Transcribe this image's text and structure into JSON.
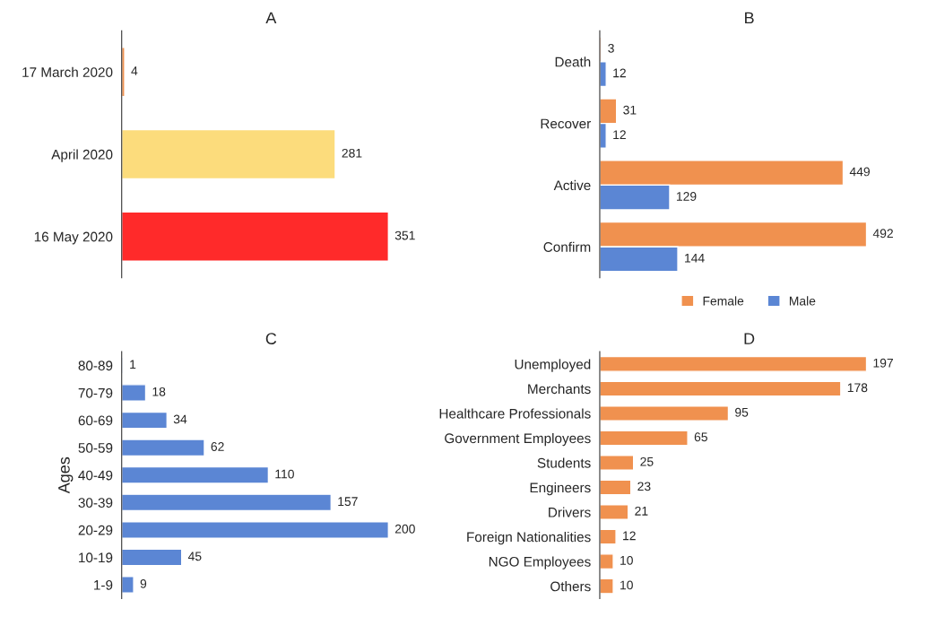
{
  "chart_data": [
    {
      "type": "bar",
      "orientation": "horizontal",
      "title": "A",
      "categories": [
        "17 March 2020",
        "April 2020",
        "16 May 2020"
      ],
      "values": [
        4,
        281,
        351
      ],
      "colors": [
        "#f0914f",
        "#fcdc7c",
        "#ff2a2a"
      ],
      "data_labels": true,
      "tick_labels": "y"
    },
    {
      "type": "bar",
      "orientation": "horizontal",
      "title": "B",
      "categories": [
        "Death",
        "Recover",
        "Active",
        "Confirm"
      ],
      "series": [
        {
          "name": "Female",
          "color": "#f0914f",
          "values": [
            3,
            31,
            449,
            492
          ]
        },
        {
          "name": "Male",
          "color": "#5b86d4",
          "values": [
            12,
            12,
            129,
            144
          ]
        }
      ],
      "data_labels": true,
      "legend": "bottom",
      "tick_labels": "y"
    },
    {
      "type": "bar",
      "orientation": "horizontal",
      "title": "C",
      "ylabel": "Ages",
      "categories": [
        "80-89",
        "70-79",
        "60-69",
        "50-59",
        "40-49",
        "30-39",
        "20-29",
        "10-19",
        "1-9"
      ],
      "values": [
        1,
        18,
        34,
        62,
        110,
        157,
        200,
        45,
        9
      ],
      "color": "#5b86d4",
      "data_labels": true,
      "tick_labels": "y"
    },
    {
      "type": "bar",
      "orientation": "horizontal",
      "title": "D",
      "categories": [
        "Unemployed",
        "Merchants",
        "Healthcare Professionals",
        "Government Employees",
        "Students",
        "Engineers",
        "Drivers",
        "Foreign Nationalities",
        "NGO Employees",
        "Others"
      ],
      "values": [
        197,
        178,
        95,
        65,
        25,
        23,
        21,
        12,
        10,
        10
      ],
      "color": "#f0914f",
      "data_labels": true,
      "tick_labels": "y"
    }
  ]
}
